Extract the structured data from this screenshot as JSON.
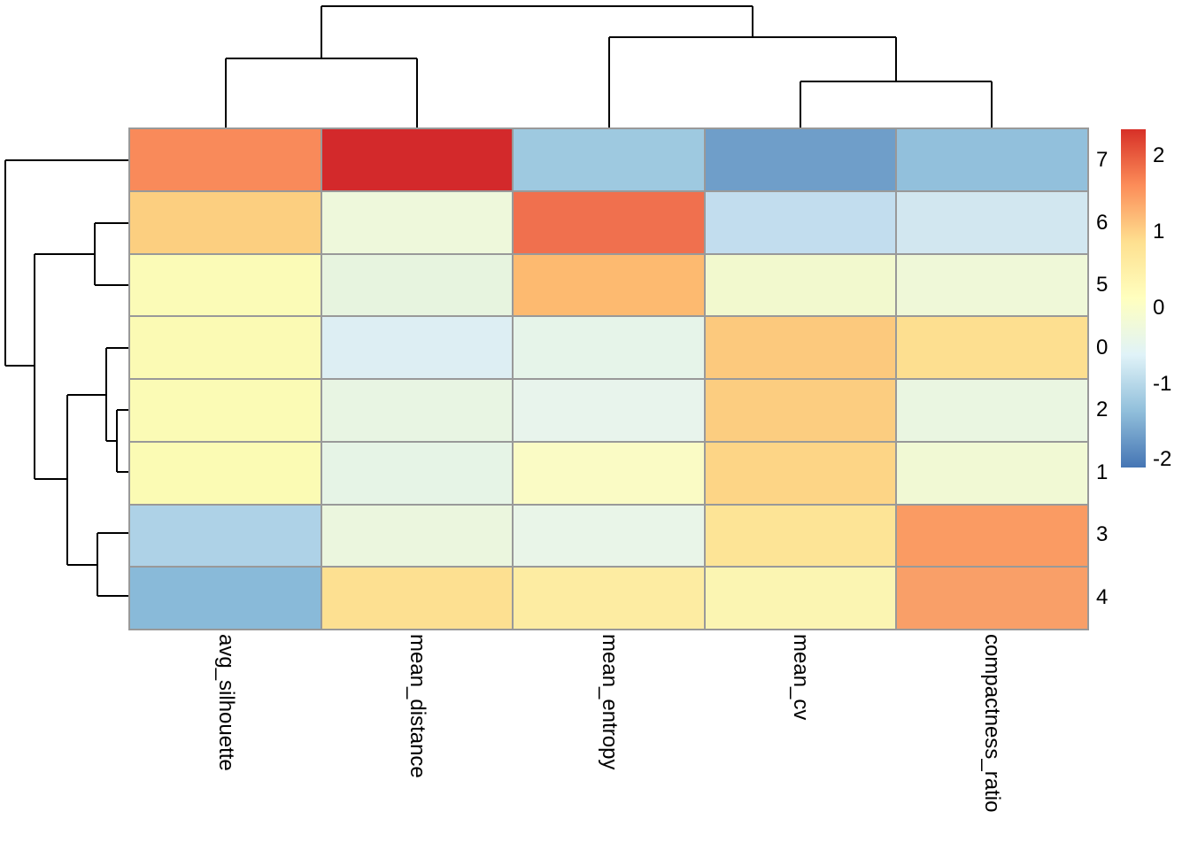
{
  "chart_data": {
    "type": "heatmap",
    "subtype": "clustered-heatmap-with-dendrograms",
    "rows": [
      "7",
      "6",
      "5",
      "0",
      "2",
      "1",
      "3",
      "4"
    ],
    "columns": [
      "avg_silhouette",
      "mean_distance",
      "mean_entropy",
      "mean_cv",
      "compactness_ratio"
    ],
    "values": [
      [
        1.6,
        2.3,
        -1.25,
        -1.7,
        -1.35
      ],
      [
        1.05,
        -0.25,
        1.85,
        -0.9,
        -0.75
      ],
      [
        0.05,
        -0.35,
        1.25,
        -0.15,
        -0.25
      ],
      [
        0.1,
        -0.65,
        -0.45,
        1.1,
        0.85
      ],
      [
        0.1,
        -0.4,
        -0.45,
        1.15,
        -0.3
      ],
      [
        0.1,
        -0.4,
        0.0,
        1.0,
        -0.15
      ],
      [
        -1.1,
        -0.3,
        -0.4,
        0.8,
        1.5
      ],
      [
        -1.45,
        0.85,
        0.55,
        0.3,
        1.45
      ]
    ],
    "cell_colors": [
      [
        "#f98a5a",
        "#d3292b",
        "#9ec9e0",
        "#6f9ec9",
        "#92c0dc"
      ],
      [
        "#fccf80",
        "#eef8db",
        "#f0704e",
        "#c2ddee",
        "#d2e7f0"
      ],
      [
        "#fbfbb7",
        "#e7f4df",
        "#fdba70",
        "#f2f9ce",
        "#eff8d8"
      ],
      [
        "#fbfab4",
        "#ddeef3",
        "#e6f4e9",
        "#fcc97d",
        "#fddf90"
      ],
      [
        "#fbfbb5",
        "#e8f5e3",
        "#e8f4ec",
        "#fccd80",
        "#eaf6e1"
      ],
      [
        "#fbfbb4",
        "#e6f4e6",
        "#fafbc5",
        "#fdd586",
        "#f1f9d4"
      ],
      [
        "#aed2e7",
        "#ebf6de",
        "#e9f5e8",
        "#fde496",
        "#fa9b63"
      ],
      [
        "#89bad9",
        "#fde091",
        "#fdeca2",
        "#fbf5b2",
        "#f99f68"
      ]
    ],
    "colorbar": {
      "tick_labels": [
        "2",
        "1",
        "0",
        "-1",
        "-2"
      ],
      "tick_values": [
        2,
        1,
        0,
        -1,
        -2
      ],
      "domain": [
        -2.1,
        2.35
      ],
      "gradient_low_to_high": [
        "#4575b4",
        "#91bfdb",
        "#e0f3f8",
        "#ffffbf",
        "#fee090",
        "#fc8d59",
        "#d73027"
      ]
    },
    "grid_color": "#999999",
    "dendrogram_color": "#000000",
    "label_color": "#000000",
    "row_centers": [
      181,
      252,
      322,
      393,
      463,
      534,
      604,
      675
    ],
    "col_centers": [
      255,
      471,
      688,
      904,
      1120
    ],
    "row_dendrogram_segments": [
      [
        6,
        181,
        147,
        181
      ],
      [
        6,
        181,
        6,
        413
      ],
      [
        6,
        413,
        39,
        413
      ],
      [
        39,
        287,
        39,
        541
      ],
      [
        39,
        287,
        107,
        287
      ],
      [
        107,
        252,
        107,
        322
      ],
      [
        107,
        252,
        147,
        252
      ],
      [
        107,
        322,
        147,
        322
      ],
      [
        39,
        541,
        76,
        541
      ],
      [
        76,
        446,
        76,
        638
      ],
      [
        76,
        446,
        120,
        446
      ],
      [
        120,
        393,
        120,
        498
      ],
      [
        120,
        393,
        147,
        393
      ],
      [
        120,
        498,
        132,
        498
      ],
      [
        132,
        463,
        132,
        533
      ],
      [
        132,
        463,
        147,
        463
      ],
      [
        132,
        533,
        147,
        533
      ],
      [
        76,
        638,
        110,
        638
      ],
      [
        110,
        602,
        110,
        673
      ],
      [
        110,
        602,
        147,
        602
      ],
      [
        110,
        673,
        147,
        673
      ]
    ],
    "col_dendrogram_segments": [
      [
        255,
        66,
        255,
        146
      ],
      [
        471,
        66,
        471,
        146
      ],
      [
        255,
        66,
        471,
        66
      ],
      [
        904,
        92,
        904,
        146
      ],
      [
        1120,
        92,
        1120,
        146
      ],
      [
        904,
        92,
        1120,
        92
      ],
      [
        688,
        42,
        688,
        146
      ],
      [
        1012,
        42,
        1012,
        92
      ],
      [
        688,
        42,
        1012,
        42
      ],
      [
        363,
        7,
        363,
        66
      ],
      [
        850,
        7,
        850,
        42
      ],
      [
        363,
        7,
        850,
        7
      ]
    ]
  }
}
